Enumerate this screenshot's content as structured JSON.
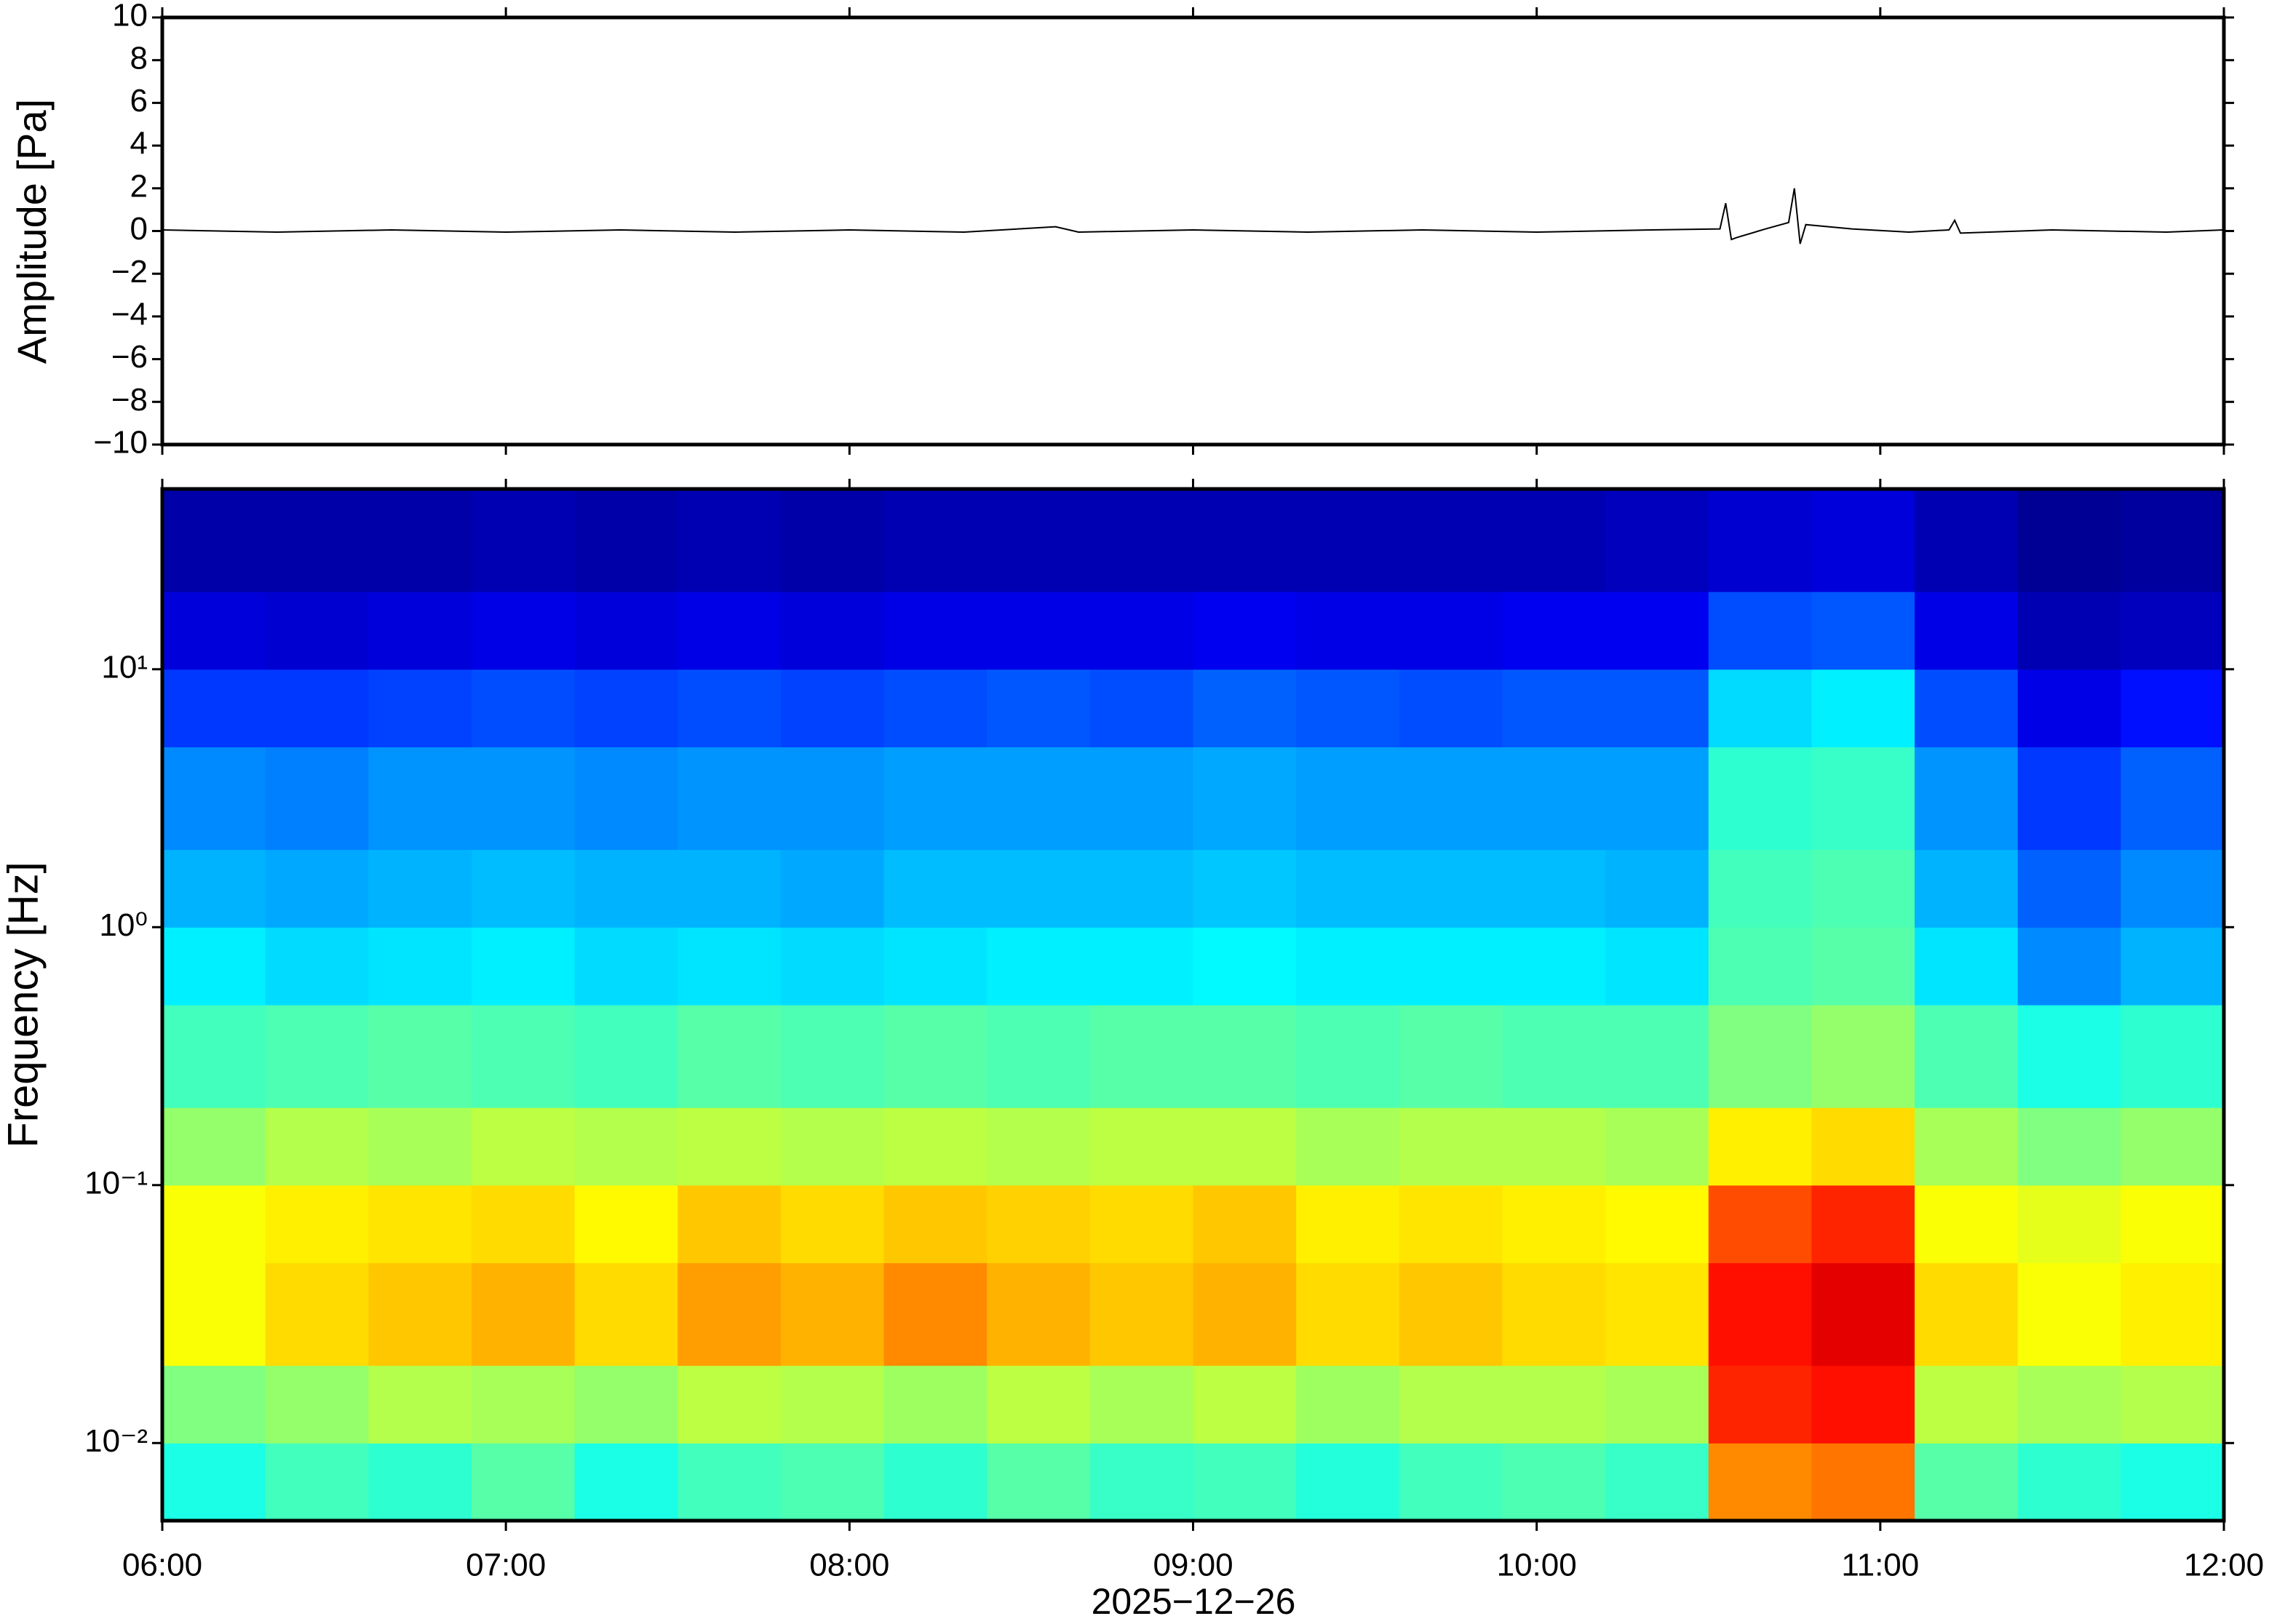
{
  "chart_data": [
    {
      "type": "line",
      "ylabel": "Amplitude [Pa]",
      "color": "#000000",
      "xlim": [
        "06:00",
        "12:00"
      ],
      "ylim": [
        -10,
        10
      ],
      "yticks": [
        {
          "value": -10,
          "label": "−10"
        },
        {
          "value": -8,
          "label": "−8"
        },
        {
          "value": -6,
          "label": "−6"
        },
        {
          "value": -4,
          "label": "−4"
        },
        {
          "value": -2,
          "label": "−2"
        },
        0,
        2,
        4,
        6,
        8,
        10
      ],
      "x": [
        "06:00",
        "06:20",
        "06:40",
        "07:00",
        "07:20",
        "07:40",
        "08:00",
        "08:20",
        "08:36",
        "08:40",
        "09:00",
        "09:20",
        "09:40",
        "10:00",
        "10:20",
        "10:32",
        "10:33",
        "10:34",
        "10:35",
        "10:40",
        "10:44",
        "10:45",
        "10:46",
        "10:47",
        "10:55",
        "11:05",
        "11:12",
        "11:13",
        "11:14",
        "11:30",
        "11:50",
        "12:00"
      ],
      "values": [
        0.05,
        -0.05,
        0.05,
        -0.05,
        0.05,
        -0.05,
        0.05,
        -0.05,
        0.2,
        -0.05,
        0.05,
        -0.05,
        0.05,
        -0.05,
        0.05,
        0.1,
        1.3,
        -0.4,
        -0.3,
        0.1,
        0.4,
        2.0,
        -0.6,
        0.3,
        0.1,
        -0.05,
        0.05,
        0.5,
        -0.1,
        0.05,
        -0.05,
        0.05
      ]
    },
    {
      "type": "heatmap",
      "ylabel": "Frequency [Hz]",
      "xlabel": "2025−12−26",
      "log_y": true,
      "colormap": "jet",
      "xlim": [
        "06:00",
        "12:00"
      ],
      "xticks": [
        "06:00",
        "07:00",
        "08:00",
        "09:00",
        "10:00",
        "11:00",
        "12:00"
      ],
      "ylim": [
        0.005,
        50
      ],
      "yticks": [
        {
          "value": 0.01,
          "label": "10⁻²"
        },
        {
          "value": 0.1,
          "label": "10⁻¹"
        },
        {
          "value": 1,
          "label": "10⁰"
        },
        {
          "value": 10,
          "label": "10¹"
        }
      ],
      "x": [
        "06:00",
        "06:18",
        "06:36",
        "06:54",
        "07:12",
        "07:30",
        "07:48",
        "08:06",
        "08:24",
        "08:42",
        "09:00",
        "09:18",
        "09:36",
        "09:54",
        "10:12",
        "10:30",
        "10:48",
        "11:06",
        "11:24",
        "11:42",
        "12:00"
      ],
      "y": [
        0.005,
        0.01,
        0.02,
        0.05,
        0.1,
        0.2,
        0.5,
        1,
        2,
        5,
        10,
        20,
        50
      ],
      "z": [
        [
          0.4,
          0.5,
          0.62,
          0.62,
          0.52,
          0.44,
          0.36,
          0.3,
          0.26,
          0.18,
          0.09,
          0.04
        ],
        [
          0.44,
          0.52,
          0.66,
          0.64,
          0.55,
          0.45,
          0.34,
          0.29,
          0.25,
          0.18,
          0.08,
          0.04
        ],
        [
          0.42,
          0.55,
          0.68,
          0.65,
          0.54,
          0.46,
          0.35,
          0.3,
          0.27,
          0.19,
          0.09,
          0.04
        ],
        [
          0.46,
          0.54,
          0.7,
          0.66,
          0.56,
          0.45,
          0.36,
          0.31,
          0.27,
          0.2,
          0.1,
          0.05
        ],
        [
          0.4,
          0.52,
          0.66,
          0.63,
          0.55,
          0.44,
          0.34,
          0.3,
          0.26,
          0.19,
          0.09,
          0.04
        ],
        [
          0.44,
          0.56,
          0.72,
          0.68,
          0.56,
          0.46,
          0.35,
          0.3,
          0.27,
          0.2,
          0.1,
          0.05
        ],
        [
          0.45,
          0.55,
          0.7,
          0.66,
          0.55,
          0.45,
          0.34,
          0.29,
          0.27,
          0.19,
          0.09,
          0.04
        ],
        [
          0.42,
          0.53,
          0.74,
          0.68,
          0.56,
          0.46,
          0.35,
          0.31,
          0.28,
          0.2,
          0.1,
          0.05
        ],
        [
          0.46,
          0.56,
          0.7,
          0.67,
          0.55,
          0.45,
          0.36,
          0.31,
          0.28,
          0.21,
          0.1,
          0.05
        ],
        [
          0.43,
          0.54,
          0.68,
          0.66,
          0.56,
          0.46,
          0.36,
          0.31,
          0.28,
          0.2,
          0.1,
          0.05
        ],
        [
          0.44,
          0.56,
          0.7,
          0.68,
          0.56,
          0.46,
          0.37,
          0.32,
          0.29,
          0.22,
          0.11,
          0.05
        ],
        [
          0.41,
          0.53,
          0.66,
          0.64,
          0.54,
          0.45,
          0.36,
          0.31,
          0.28,
          0.21,
          0.1,
          0.05
        ],
        [
          0.44,
          0.55,
          0.68,
          0.65,
          0.55,
          0.46,
          0.36,
          0.31,
          0.28,
          0.2,
          0.1,
          0.05
        ],
        [
          0.45,
          0.55,
          0.66,
          0.64,
          0.55,
          0.45,
          0.36,
          0.31,
          0.28,
          0.21,
          0.11,
          0.05
        ],
        [
          0.43,
          0.54,
          0.65,
          0.63,
          0.54,
          0.45,
          0.35,
          0.3,
          0.28,
          0.21,
          0.11,
          0.06
        ],
        [
          0.74,
          0.84,
          0.86,
          0.8,
          0.64,
          0.5,
          0.45,
          0.44,
          0.42,
          0.34,
          0.2,
          0.08
        ],
        [
          0.76,
          0.86,
          0.9,
          0.84,
          0.66,
          0.52,
          0.46,
          0.45,
          0.43,
          0.36,
          0.21,
          0.09
        ],
        [
          0.46,
          0.56,
          0.66,
          0.62,
          0.54,
          0.45,
          0.35,
          0.3,
          0.27,
          0.2,
          0.1,
          0.05
        ],
        [
          0.42,
          0.54,
          0.62,
          0.6,
          0.5,
          0.4,
          0.26,
          0.22,
          0.18,
          0.1,
          0.05,
          0.02
        ],
        [
          0.4,
          0.55,
          0.64,
          0.62,
          0.52,
          0.42,
          0.3,
          0.26,
          0.22,
          0.14,
          0.06,
          0.03
        ]
      ]
    }
  ]
}
